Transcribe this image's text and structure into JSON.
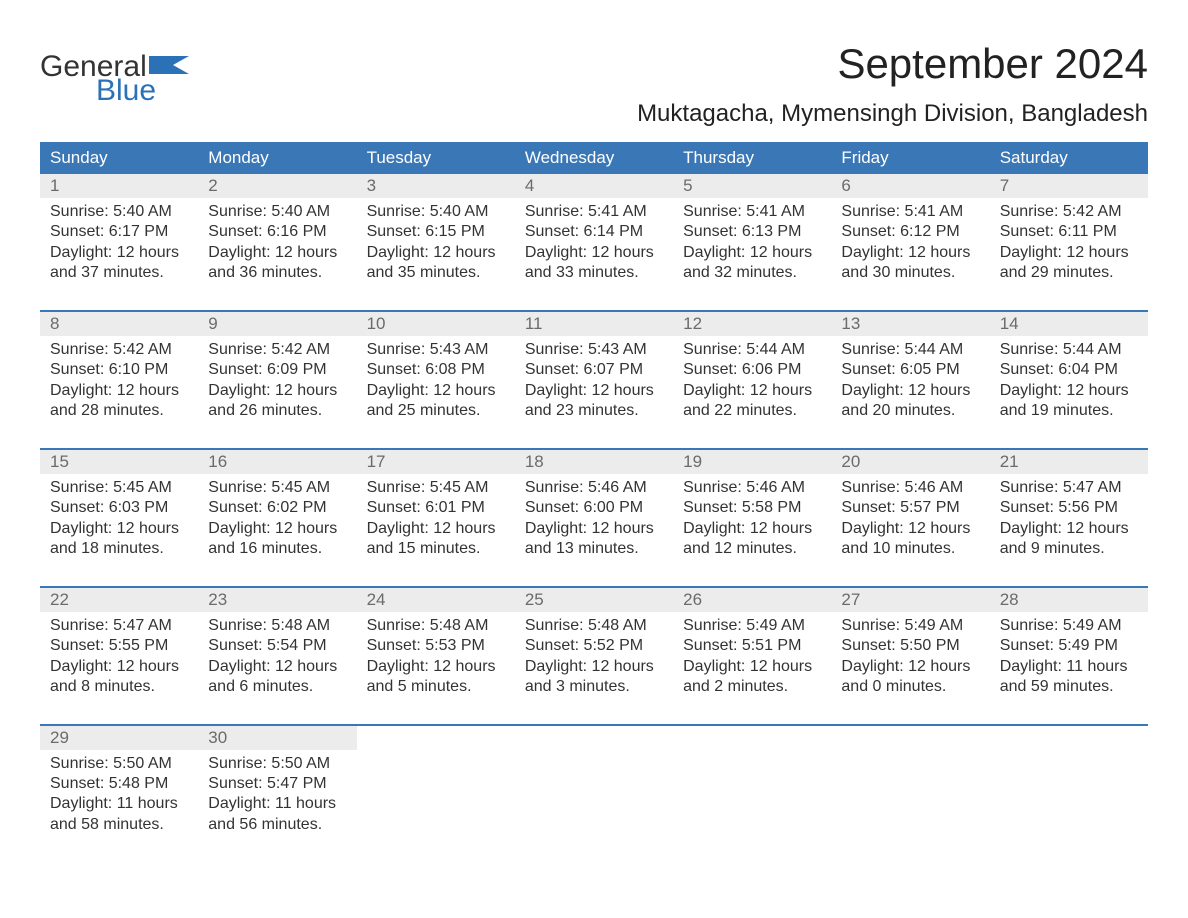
{
  "logo": {
    "general": "General",
    "blue": "Blue"
  },
  "title": "September 2024",
  "location": "Muktagacha, Mymensingh Division, Bangladesh",
  "colors": {
    "header_bg": "#3a77b7",
    "header_text": "#ffffff",
    "daynum_bg": "#ececec",
    "daynum_text": "#6b6b6b",
    "body_text": "#333333",
    "logo_blue": "#2b71b8",
    "page_bg": "#ffffff",
    "week_border": "#3a77b7"
  },
  "typography": {
    "title_fontsize": 42,
    "location_fontsize": 24,
    "dayheader_fontsize": 17,
    "daynum_fontsize": 17,
    "content_fontsize": 16,
    "logo_fontsize": 30
  },
  "day_names": [
    "Sunday",
    "Monday",
    "Tuesday",
    "Wednesday",
    "Thursday",
    "Friday",
    "Saturday"
  ],
  "weeks": [
    [
      {
        "n": "1",
        "sunrise": "Sunrise: 5:40 AM",
        "sunset": "Sunset: 6:17 PM",
        "daylight1": "Daylight: 12 hours",
        "daylight2": "and 37 minutes."
      },
      {
        "n": "2",
        "sunrise": "Sunrise: 5:40 AM",
        "sunset": "Sunset: 6:16 PM",
        "daylight1": "Daylight: 12 hours",
        "daylight2": "and 36 minutes."
      },
      {
        "n": "3",
        "sunrise": "Sunrise: 5:40 AM",
        "sunset": "Sunset: 6:15 PM",
        "daylight1": "Daylight: 12 hours",
        "daylight2": "and 35 minutes."
      },
      {
        "n": "4",
        "sunrise": "Sunrise: 5:41 AM",
        "sunset": "Sunset: 6:14 PM",
        "daylight1": "Daylight: 12 hours",
        "daylight2": "and 33 minutes."
      },
      {
        "n": "5",
        "sunrise": "Sunrise: 5:41 AM",
        "sunset": "Sunset: 6:13 PM",
        "daylight1": "Daylight: 12 hours",
        "daylight2": "and 32 minutes."
      },
      {
        "n": "6",
        "sunrise": "Sunrise: 5:41 AM",
        "sunset": "Sunset: 6:12 PM",
        "daylight1": "Daylight: 12 hours",
        "daylight2": "and 30 minutes."
      },
      {
        "n": "7",
        "sunrise": "Sunrise: 5:42 AM",
        "sunset": "Sunset: 6:11 PM",
        "daylight1": "Daylight: 12 hours",
        "daylight2": "and 29 minutes."
      }
    ],
    [
      {
        "n": "8",
        "sunrise": "Sunrise: 5:42 AM",
        "sunset": "Sunset: 6:10 PM",
        "daylight1": "Daylight: 12 hours",
        "daylight2": "and 28 minutes."
      },
      {
        "n": "9",
        "sunrise": "Sunrise: 5:42 AM",
        "sunset": "Sunset: 6:09 PM",
        "daylight1": "Daylight: 12 hours",
        "daylight2": "and 26 minutes."
      },
      {
        "n": "10",
        "sunrise": "Sunrise: 5:43 AM",
        "sunset": "Sunset: 6:08 PM",
        "daylight1": "Daylight: 12 hours",
        "daylight2": "and 25 minutes."
      },
      {
        "n": "11",
        "sunrise": "Sunrise: 5:43 AM",
        "sunset": "Sunset: 6:07 PM",
        "daylight1": "Daylight: 12 hours",
        "daylight2": "and 23 minutes."
      },
      {
        "n": "12",
        "sunrise": "Sunrise: 5:44 AM",
        "sunset": "Sunset: 6:06 PM",
        "daylight1": "Daylight: 12 hours",
        "daylight2": "and 22 minutes."
      },
      {
        "n": "13",
        "sunrise": "Sunrise: 5:44 AM",
        "sunset": "Sunset: 6:05 PM",
        "daylight1": "Daylight: 12 hours",
        "daylight2": "and 20 minutes."
      },
      {
        "n": "14",
        "sunrise": "Sunrise: 5:44 AM",
        "sunset": "Sunset: 6:04 PM",
        "daylight1": "Daylight: 12 hours",
        "daylight2": "and 19 minutes."
      }
    ],
    [
      {
        "n": "15",
        "sunrise": "Sunrise: 5:45 AM",
        "sunset": "Sunset: 6:03 PM",
        "daylight1": "Daylight: 12 hours",
        "daylight2": "and 18 minutes."
      },
      {
        "n": "16",
        "sunrise": "Sunrise: 5:45 AM",
        "sunset": "Sunset: 6:02 PM",
        "daylight1": "Daylight: 12 hours",
        "daylight2": "and 16 minutes."
      },
      {
        "n": "17",
        "sunrise": "Sunrise: 5:45 AM",
        "sunset": "Sunset: 6:01 PM",
        "daylight1": "Daylight: 12 hours",
        "daylight2": "and 15 minutes."
      },
      {
        "n": "18",
        "sunrise": "Sunrise: 5:46 AM",
        "sunset": "Sunset: 6:00 PM",
        "daylight1": "Daylight: 12 hours",
        "daylight2": "and 13 minutes."
      },
      {
        "n": "19",
        "sunrise": "Sunrise: 5:46 AM",
        "sunset": "Sunset: 5:58 PM",
        "daylight1": "Daylight: 12 hours",
        "daylight2": "and 12 minutes."
      },
      {
        "n": "20",
        "sunrise": "Sunrise: 5:46 AM",
        "sunset": "Sunset: 5:57 PM",
        "daylight1": "Daylight: 12 hours",
        "daylight2": "and 10 minutes."
      },
      {
        "n": "21",
        "sunrise": "Sunrise: 5:47 AM",
        "sunset": "Sunset: 5:56 PM",
        "daylight1": "Daylight: 12 hours",
        "daylight2": "and 9 minutes."
      }
    ],
    [
      {
        "n": "22",
        "sunrise": "Sunrise: 5:47 AM",
        "sunset": "Sunset: 5:55 PM",
        "daylight1": "Daylight: 12 hours",
        "daylight2": "and 8 minutes."
      },
      {
        "n": "23",
        "sunrise": "Sunrise: 5:48 AM",
        "sunset": "Sunset: 5:54 PM",
        "daylight1": "Daylight: 12 hours",
        "daylight2": "and 6 minutes."
      },
      {
        "n": "24",
        "sunrise": "Sunrise: 5:48 AM",
        "sunset": "Sunset: 5:53 PM",
        "daylight1": "Daylight: 12 hours",
        "daylight2": "and 5 minutes."
      },
      {
        "n": "25",
        "sunrise": "Sunrise: 5:48 AM",
        "sunset": "Sunset: 5:52 PM",
        "daylight1": "Daylight: 12 hours",
        "daylight2": "and 3 minutes."
      },
      {
        "n": "26",
        "sunrise": "Sunrise: 5:49 AM",
        "sunset": "Sunset: 5:51 PM",
        "daylight1": "Daylight: 12 hours",
        "daylight2": "and 2 minutes."
      },
      {
        "n": "27",
        "sunrise": "Sunrise: 5:49 AM",
        "sunset": "Sunset: 5:50 PM",
        "daylight1": "Daylight: 12 hours",
        "daylight2": "and 0 minutes."
      },
      {
        "n": "28",
        "sunrise": "Sunrise: 5:49 AM",
        "sunset": "Sunset: 5:49 PM",
        "daylight1": "Daylight: 11 hours",
        "daylight2": "and 59 minutes."
      }
    ],
    [
      {
        "n": "29",
        "sunrise": "Sunrise: 5:50 AM",
        "sunset": "Sunset: 5:48 PM",
        "daylight1": "Daylight: 11 hours",
        "daylight2": "and 58 minutes."
      },
      {
        "n": "30",
        "sunrise": "Sunrise: 5:50 AM",
        "sunset": "Sunset: 5:47 PM",
        "daylight1": "Daylight: 11 hours",
        "daylight2": "and 56 minutes."
      },
      null,
      null,
      null,
      null,
      null
    ]
  ]
}
